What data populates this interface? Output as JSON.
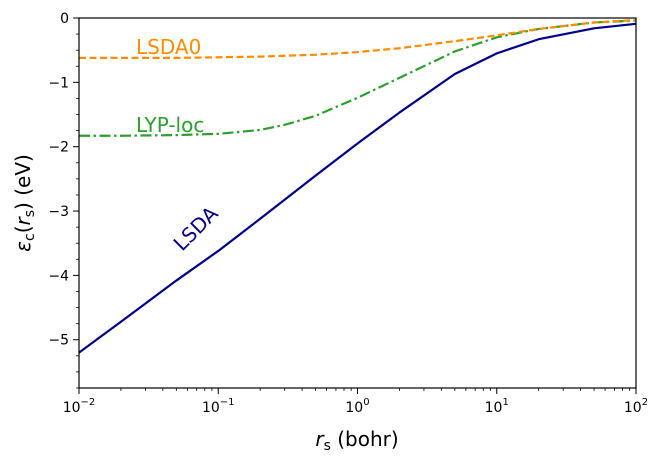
{
  "chart_data": {
    "type": "line",
    "title": "",
    "xscale": "log",
    "xlim": [
      0.01,
      100
    ],
    "ylim": [
      -5.75,
      0
    ],
    "xlabel": {
      "main": "r",
      "sub": "s",
      "unit": " (bohr)"
    },
    "ylabel": {
      "main": "ε",
      "sub": "c",
      "arg_open": "(",
      "arg_main": "r",
      "arg_sub": "s",
      "arg_close": ")",
      "unit": " (eV)"
    },
    "xticks": [
      {
        "value": 0.01,
        "base": "10",
        "exp": "−2"
      },
      {
        "value": 0.1,
        "base": "10",
        "exp": "−1"
      },
      {
        "value": 1,
        "base": "10",
        "exp": "0"
      },
      {
        "value": 10,
        "base": "10",
        "exp": "1"
      },
      {
        "value": 100,
        "base": "10",
        "exp": "2"
      }
    ],
    "yticks": [
      {
        "value": 0,
        "label": "0"
      },
      {
        "value": -1,
        "label": "−1"
      },
      {
        "value": -2,
        "label": "−2"
      },
      {
        "value": -3,
        "label": "−3"
      },
      {
        "value": -4,
        "label": "−4"
      },
      {
        "value": -5,
        "label": "−5"
      }
    ],
    "grid": false,
    "series": [
      {
        "name": "LSDA",
        "label": "LSDA",
        "color": "#00008b",
        "style": "solid",
        "x": [
          0.01,
          0.02,
          0.05,
          0.1,
          0.2,
          0.5,
          1,
          2,
          5,
          10,
          20,
          50,
          100
        ],
        "y": [
          -5.2,
          -4.72,
          -4.08,
          -3.62,
          -3.12,
          -2.45,
          -1.95,
          -1.47,
          -0.87,
          -0.55,
          -0.33,
          -0.16,
          -0.09
        ]
      },
      {
        "name": "LYP-loc",
        "label": "LYP-loc",
        "color": "#2ca02c",
        "style": "dashdot",
        "x": [
          0.01,
          0.02,
          0.05,
          0.1,
          0.2,
          0.3,
          0.5,
          1,
          2,
          5,
          10,
          20,
          50,
          100
        ],
        "y": [
          -1.83,
          -1.83,
          -1.82,
          -1.8,
          -1.74,
          -1.66,
          -1.52,
          -1.24,
          -0.93,
          -0.52,
          -0.3,
          -0.17,
          -0.07,
          -0.04
        ]
      },
      {
        "name": "LSDA0",
        "label": "LSDA0",
        "color": "#ff8c00",
        "style": "dashed",
        "x": [
          0.01,
          0.05,
          0.1,
          0.2,
          0.5,
          1,
          2,
          5,
          10,
          20,
          50,
          100
        ],
        "y": [
          -0.62,
          -0.62,
          -0.61,
          -0.6,
          -0.57,
          -0.53,
          -0.47,
          -0.36,
          -0.27,
          -0.17,
          -0.07,
          -0.03
        ]
      }
    ]
  }
}
